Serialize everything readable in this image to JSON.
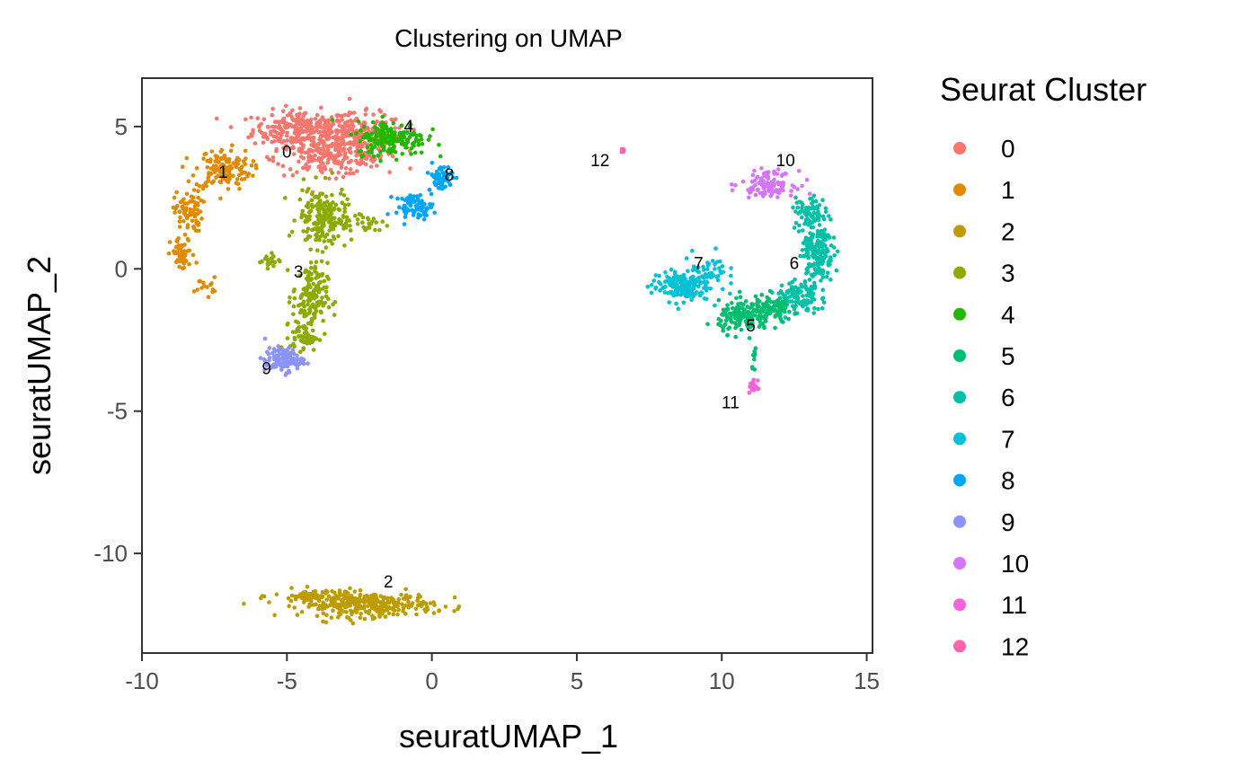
{
  "chart_data": {
    "type": "scatter",
    "title": "Clustering on UMAP",
    "xlabel": "seuratUMAP_1",
    "ylabel": "seuratUMAP_2",
    "xlim": [
      -10,
      15.2
    ],
    "ylim": [
      -13.5,
      6.7
    ],
    "x_ticks": [
      -10,
      -5,
      0,
      5,
      10,
      15
    ],
    "y_ticks": [
      5,
      0,
      -5,
      -10
    ],
    "x_tick_labels": [
      "-10",
      "-5",
      "0",
      "5",
      "10",
      "15"
    ],
    "y_tick_labels": [
      "5",
      "0",
      "-5",
      "-10"
    ],
    "grid": false,
    "legend_title": "Seurat Cluster",
    "legend_position": "right",
    "clusters": [
      {
        "name": "0",
        "color": "#F8766D",
        "label_pos": [
          -5,
          3.9
        ],
        "cells": [
          [
            -4.5,
            4.9,
            1.4,
            0.55,
            260
          ],
          [
            -2.5,
            4.6,
            1.3,
            0.7,
            220
          ],
          [
            -3.6,
            3.9,
            1.5,
            0.5,
            160
          ]
        ]
      },
      {
        "name": "1",
        "color": "#E18A00",
        "label_pos": [
          -7.2,
          3.2
        ],
        "cells": [
          [
            -7.2,
            3.5,
            0.8,
            0.6,
            140
          ],
          [
            -8.4,
            2.0,
            0.4,
            0.6,
            80
          ],
          [
            -8.6,
            0.5,
            0.35,
            0.5,
            50
          ],
          [
            -7.8,
            -0.6,
            0.3,
            0.25,
            15
          ]
        ]
      },
      {
        "name": "2",
        "color": "#BE9C00",
        "label_pos": [
          -1.5,
          -11.2
        ],
        "cells": [
          [
            -2.2,
            -11.8,
            1.9,
            0.35,
            300
          ],
          [
            -4.0,
            -11.5,
            1.2,
            0.2,
            60
          ]
        ]
      },
      {
        "name": "3",
        "color": "#8CAB00",
        "label_pos": [
          -4.6,
          -0.3
        ],
        "cells": [
          [
            -3.8,
            1.8,
            0.7,
            0.9,
            170
          ],
          [
            -4.2,
            -1.0,
            0.5,
            1.0,
            150
          ],
          [
            -4.4,
            -2.4,
            0.4,
            0.4,
            50
          ],
          [
            -5.6,
            0.3,
            0.3,
            0.2,
            20
          ],
          [
            -2.5,
            1.6,
            0.9,
            0.4,
            40
          ]
        ]
      },
      {
        "name": "4",
        "color": "#24B700",
        "label_pos": [
          -0.8,
          4.8
        ],
        "cells": [
          [
            -1.4,
            4.6,
            1.0,
            0.5,
            190
          ]
        ]
      },
      {
        "name": "8",
        "color": "#00A5FF",
        "label_pos": [
          0.6,
          3.1
        ],
        "cells": [
          [
            0.3,
            3.2,
            0.35,
            0.4,
            60
          ],
          [
            -0.6,
            2.2,
            0.55,
            0.35,
            70
          ]
        ]
      },
      {
        "name": "9",
        "color": "#8B93FF",
        "label_pos": [
          -5.7,
          -3.7
        ],
        "cells": [
          [
            -5.1,
            -3.2,
            0.55,
            0.35,
            110
          ]
        ]
      },
      {
        "name": "7",
        "color": "#00C1D5",
        "label_pos": [
          9.2,
          0.0
        ],
        "cells": [
          [
            8.6,
            -0.6,
            0.85,
            0.45,
            170
          ],
          [
            9.6,
            0.0,
            0.5,
            0.5,
            40
          ]
        ]
      },
      {
        "name": "6",
        "color": "#00C1A7",
        "label_pos": [
          12.5,
          0.0
        ],
        "cells": [
          [
            13.3,
            0.8,
            0.45,
            1.2,
            220
          ],
          [
            12.6,
            -1.0,
            0.6,
            0.5,
            100
          ],
          [
            12.9,
            2.0,
            0.4,
            0.4,
            40
          ]
        ]
      },
      {
        "name": "5",
        "color": "#00BE70",
        "label_pos": [
          11.0,
          -2.2
        ],
        "cells": [
          [
            10.8,
            -1.7,
            0.75,
            0.45,
            160
          ],
          [
            11.8,
            -1.4,
            0.55,
            0.4,
            80
          ],
          [
            11.1,
            -3.2,
            0.08,
            0.35,
            10
          ]
        ]
      },
      {
        "name": "10",
        "color": "#D575FE",
        "label_pos": [
          12.2,
          3.6
        ],
        "cells": [
          [
            11.6,
            3.0,
            0.75,
            0.35,
            110
          ]
        ]
      },
      {
        "name": "11",
        "color": "#F962DD",
        "label_pos": [
          10.3,
          -4.9
        ],
        "cells": [
          [
            11.1,
            -4.15,
            0.12,
            0.2,
            30
          ]
        ]
      },
      {
        "name": "12",
        "color": "#FF65AC",
        "label_pos": [
          5.8,
          3.6
        ],
        "cells": [
          [
            6.6,
            4.15,
            0.05,
            0.05,
            10
          ]
        ]
      }
    ],
    "legend_order": [
      "0",
      "1",
      "2",
      "3",
      "4",
      "5",
      "6",
      "7",
      "8",
      "9",
      "10",
      "11",
      "12"
    ]
  }
}
